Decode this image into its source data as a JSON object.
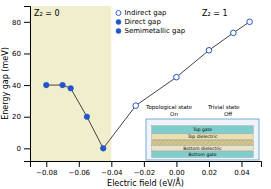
{
  "chart_data": {
    "type": "scatter",
    "xlabel": "Electric field (eV/Å)",
    "ylabel": "Energy gap (meV)",
    "xlim": [
      -0.09,
      0.052
    ],
    "ylim": [
      -8,
      90
    ],
    "xticks": [
      {
        "value": -0.08,
        "label": "−0.08"
      },
      {
        "value": -0.06,
        "label": "−0.06"
      },
      {
        "value": -0.04,
        "label": "−0.04"
      },
      {
        "value": -0.02,
        "label": "−0.02"
      },
      {
        "value": 0.0,
        "label": "0.00"
      },
      0.02,
      0.04
    ],
    "yticks": [
      0,
      20,
      40,
      60,
      80
    ],
    "grid": false,
    "legend": "upper center",
    "regions": [
      {
        "xlim": [
          -0.09,
          -0.04
        ],
        "color": "#f0eecc"
      }
    ],
    "series": [
      {
        "type": "line",
        "color": "#444444",
        "x": [
          -0.08,
          -0.07,
          -0.065,
          -0.055,
          -0.045,
          -0.025,
          0.0,
          0.02,
          0.035,
          0.045
        ],
        "values": [
          40,
          40,
          38,
          20,
          0,
          27,
          45,
          62,
          73,
          80
        ]
      },
      {
        "name": "Indirect gap",
        "marker": "open_circle",
        "color": "#2255cc",
        "x": [
          -0.025,
          0.0,
          0.02,
          0.035,
          0.045
        ],
        "values": [
          27,
          45,
          62,
          73,
          80
        ]
      },
      {
        "name": "Direct gap",
        "marker": "circle",
        "color": "#2255cc",
        "x": [
          -0.07,
          -0.065,
          -0.055,
          -0.045
        ],
        "values": [
          40,
          38,
          20,
          0
        ]
      },
      {
        "name": "Semimetallic gap",
        "marker": "circle",
        "color": "#2255cc",
        "x": [
          -0.08
        ],
        "values": [
          40
        ]
      }
    ],
    "annotations": [
      "Z₂ = 0",
      "Z₂ = 1",
      "Topological state",
      "Trivial state",
      "On",
      "Off",
      "Top gate",
      "Top dielectric",
      "Bottom gate",
      "Bottom dielectric"
    ]
  }
}
